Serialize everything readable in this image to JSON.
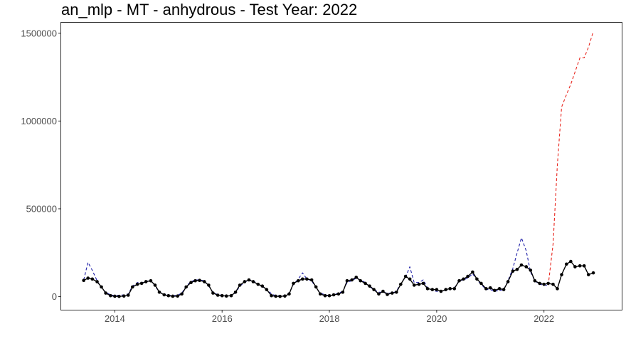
{
  "chart_data": {
    "type": "line",
    "title": "an_mlp - MT - anhydrous - Test Year: 2022",
    "xlabel": "",
    "ylabel": "",
    "xlim": [
      2013.0,
      2023.45
    ],
    "ylim": [
      -75000,
      1560000
    ],
    "x_ticks": [
      {
        "value": 2014,
        "label": "2014"
      },
      {
        "value": 2016,
        "label": "2016"
      },
      {
        "value": 2018,
        "label": "2018"
      },
      {
        "value": 2020,
        "label": "2020"
      },
      {
        "value": 2022,
        "label": "2022"
      }
    ],
    "y_ticks": [
      {
        "value": 0,
        "label": "0"
      },
      {
        "value": 500000,
        "label": "500000"
      },
      {
        "value": 1000000,
        "label": "1000000"
      },
      {
        "value": 1500000,
        "label": "1500000"
      }
    ],
    "grid": false,
    "legend": "none",
    "series": [
      {
        "style": "solid-with-points",
        "color": "#000000",
        "x": [
          2013.42,
          2013.5,
          2013.58,
          2013.67,
          2013.75,
          2013.83,
          2013.92,
          2014.0,
          2014.08,
          2014.17,
          2014.25,
          2014.33,
          2014.42,
          2014.5,
          2014.58,
          2014.67,
          2014.75,
          2014.83,
          2014.92,
          2015.0,
          2015.08,
          2015.17,
          2015.25,
          2015.33,
          2015.42,
          2015.5,
          2015.58,
          2015.67,
          2015.75,
          2015.83,
          2015.92,
          2016.0,
          2016.08,
          2016.17,
          2016.25,
          2016.33,
          2016.42,
          2016.5,
          2016.58,
          2016.67,
          2016.75,
          2016.83,
          2016.92,
          2017.0,
          2017.08,
          2017.17,
          2017.25,
          2017.33,
          2017.42,
          2017.5,
          2017.58,
          2017.67,
          2017.75,
          2017.83,
          2017.92,
          2018.0,
          2018.08,
          2018.17,
          2018.25,
          2018.33,
          2018.42,
          2018.5,
          2018.58,
          2018.67,
          2018.75,
          2018.83,
          2018.92,
          2019.0,
          2019.08,
          2019.17,
          2019.25,
          2019.33,
          2019.42,
          2019.5,
          2019.58,
          2019.67,
          2019.75,
          2019.83,
          2019.92,
          2020.0,
          2020.08,
          2020.17,
          2020.25,
          2020.33,
          2020.42,
          2020.5,
          2020.58,
          2020.67,
          2020.75,
          2020.83,
          2020.92,
          2021.0,
          2021.08,
          2021.17,
          2021.25,
          2021.33,
          2021.42,
          2021.5,
          2021.58,
          2021.67,
          2021.75,
          2021.83,
          2021.92,
          2022.0,
          2022.08,
          2022.17,
          2022.25,
          2022.33,
          2022.42,
          2022.5,
          2022.58,
          2022.67,
          2022.75,
          2022.83,
          2022.92
        ],
        "y": [
          92000,
          105000,
          100000,
          85000,
          55000,
          20000,
          5000,
          2000,
          1000,
          3000,
          8000,
          55000,
          70000,
          75000,
          85000,
          90000,
          65000,
          25000,
          10000,
          5000,
          2000,
          3000,
          15000,
          55000,
          80000,
          90000,
          92000,
          85000,
          65000,
          20000,
          8000,
          5000,
          3000,
          5000,
          25000,
          65000,
          85000,
          95000,
          85000,
          70000,
          60000,
          40000,
          5000,
          2000,
          1000,
          3000,
          15000,
          75000,
          90000,
          100000,
          100000,
          95000,
          55000,
          15000,
          5000,
          5000,
          10000,
          15000,
          25000,
          90000,
          95000,
          110000,
          90000,
          75000,
          60000,
          40000,
          15000,
          30000,
          12000,
          20000,
          25000,
          70000,
          115000,
          100000,
          65000,
          70000,
          75000,
          45000,
          40000,
          40000,
          30000,
          40000,
          45000,
          45000,
          90000,
          100000,
          115000,
          140000,
          100000,
          75000,
          45000,
          50000,
          35000,
          45000,
          40000,
          85000,
          145000,
          155000,
          180000,
          170000,
          150000,
          90000,
          75000,
          70000,
          75000,
          70000,
          45000,
          125000,
          185000,
          200000,
          170000,
          175000,
          175000,
          125000,
          135000
        ]
      },
      {
        "style": "dashed",
        "color": "#1f1fa8",
        "x": [
          2013.42,
          2013.5,
          2013.58,
          2013.67,
          2013.75,
          2013.83,
          2013.92,
          2014.0,
          2014.08,
          2014.17,
          2014.25,
          2014.33,
          2014.42,
          2014.5,
          2014.58,
          2014.67,
          2014.75,
          2014.83,
          2014.92,
          2015.0,
          2015.08,
          2015.17,
          2015.25,
          2015.33,
          2015.42,
          2015.5,
          2015.58,
          2015.67,
          2015.75,
          2015.83,
          2015.92,
          2016.0,
          2016.08,
          2016.17,
          2016.25,
          2016.33,
          2016.42,
          2016.5,
          2016.58,
          2016.67,
          2016.75,
          2016.83,
          2016.92,
          2017.0,
          2017.08,
          2017.17,
          2017.25,
          2017.33,
          2017.42,
          2017.5,
          2017.58,
          2017.67,
          2017.75,
          2017.83,
          2017.92,
          2018.0,
          2018.08,
          2018.17,
          2018.25,
          2018.33,
          2018.42,
          2018.5,
          2018.58,
          2018.67,
          2018.75,
          2018.83,
          2018.92,
          2019.0,
          2019.08,
          2019.17,
          2019.25,
          2019.33,
          2019.42,
          2019.5,
          2019.58,
          2019.67,
          2019.75,
          2019.83,
          2019.92,
          2020.0,
          2020.08,
          2020.17,
          2020.25,
          2020.33,
          2020.42,
          2020.5,
          2020.58,
          2020.67,
          2020.75,
          2020.83,
          2020.92,
          2021.0,
          2021.08,
          2021.17,
          2021.25,
          2021.33,
          2021.42,
          2021.5,
          2021.58,
          2021.67,
          2021.75,
          2021.83,
          2021.92,
          2022.0,
          2022.08
        ],
        "y": [
          95000,
          195000,
          150000,
          90000,
          50000,
          25000,
          10000,
          5000,
          8000,
          10000,
          15000,
          60000,
          80000,
          80000,
          85000,
          95000,
          60000,
          25000,
          15000,
          8000,
          5000,
          8000,
          20000,
          60000,
          85000,
          95000,
          95000,
          90000,
          60000,
          25000,
          10000,
          8000,
          5000,
          8000,
          20000,
          60000,
          80000,
          95000,
          90000,
          70000,
          55000,
          45000,
          15000,
          5000,
          5000,
          5000,
          20000,
          70000,
          100000,
          135000,
          100000,
          90000,
          50000,
          20000,
          10000,
          5000,
          10000,
          20000,
          30000,
          80000,
          90000,
          105000,
          95000,
          80000,
          55000,
          40000,
          25000,
          25000,
          20000,
          20000,
          30000,
          75000,
          110000,
          170000,
          80000,
          80000,
          95000,
          50000,
          35000,
          30000,
          25000,
          35000,
          40000,
          50000,
          90000,
          95000,
          105000,
          130000,
          95000,
          70000,
          40000,
          40000,
          30000,
          35000,
          40000,
          90000,
          160000,
          250000,
          335000,
          260000,
          140000,
          90000,
          70000,
          65000,
          65000
        ]
      },
      {
        "style": "dashed",
        "color": "#e8241c",
        "x": [
          2022.08,
          2022.17,
          2022.25,
          2022.33,
          2022.42,
          2022.5,
          2022.58,
          2022.67,
          2022.75,
          2022.83,
          2022.92
        ],
        "y": [
          65000,
          300000,
          750000,
          1080000,
          1150000,
          1210000,
          1280000,
          1360000,
          1360000,
          1420000,
          1510000
        ]
      }
    ]
  }
}
